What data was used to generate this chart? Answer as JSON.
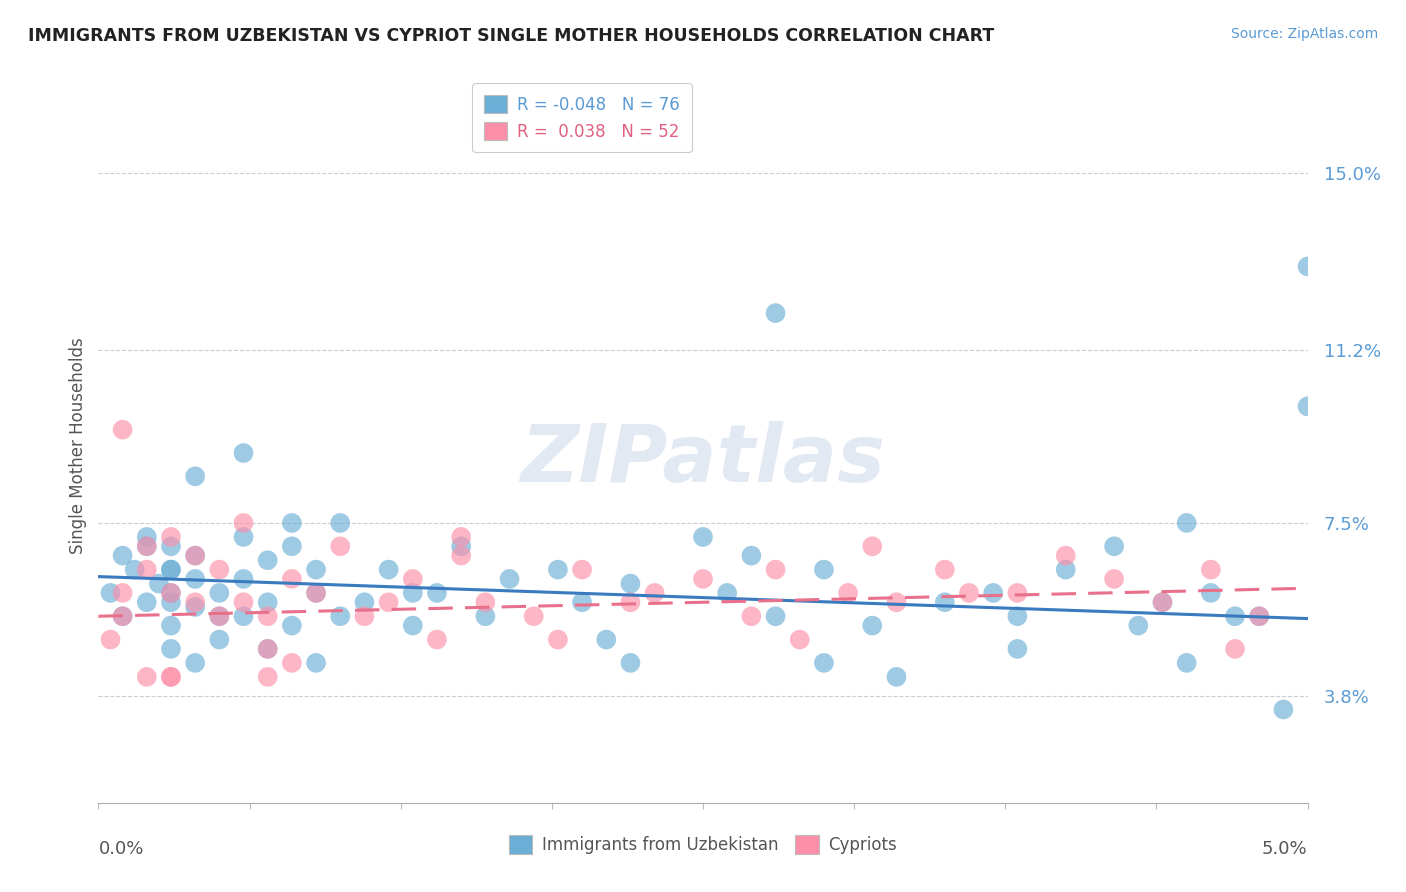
{
  "title": "IMMIGRANTS FROM UZBEKISTAN VS CYPRIOT SINGLE MOTHER HOUSEHOLDS CORRELATION CHART",
  "source": "Source: ZipAtlas.com",
  "ylabel": "Single Mother Households",
  "y_ticks": [
    0.038,
    0.075,
    0.112,
    0.15
  ],
  "y_tick_labels": [
    "3.8%",
    "7.5%",
    "11.2%",
    "15.0%"
  ],
  "x_lim": [
    0.0,
    0.05
  ],
  "y_lim": [
    0.015,
    0.168
  ],
  "legend_r1": "R = -0.048",
  "legend_n1": "N = 76",
  "legend_r2": "R =  0.038",
  "legend_n2": "N = 52",
  "color_blue": "#6baed6",
  "color_pink": "#fc8fa8",
  "trend_blue": "#3a7abf",
  "trend_pink": "#e8708a",
  "watermark": "ZIPatlas",
  "blue_scatter_x": [
    0.0005,
    0.001,
    0.001,
    0.0015,
    0.002,
    0.002,
    0.002,
    0.0025,
    0.003,
    0.003,
    0.003,
    0.003,
    0.003,
    0.003,
    0.004,
    0.004,
    0.004,
    0.004,
    0.005,
    0.005,
    0.005,
    0.006,
    0.006,
    0.006,
    0.007,
    0.007,
    0.007,
    0.008,
    0.008,
    0.009,
    0.009,
    0.01,
    0.01,
    0.011,
    0.012,
    0.013,
    0.014,
    0.015,
    0.016,
    0.017,
    0.019,
    0.02,
    0.021,
    0.022,
    0.025,
    0.026,
    0.027,
    0.028,
    0.03,
    0.032,
    0.033,
    0.035,
    0.037,
    0.038,
    0.04,
    0.042,
    0.043,
    0.044,
    0.045,
    0.046,
    0.047,
    0.048,
    0.049,
    0.05,
    0.05,
    0.045,
    0.038,
    0.03,
    0.022,
    0.013,
    0.008,
    0.004,
    0.003,
    0.006,
    0.009,
    0.028
  ],
  "blue_scatter_y": [
    0.06,
    0.055,
    0.068,
    0.065,
    0.058,
    0.072,
    0.07,
    0.062,
    0.065,
    0.058,
    0.053,
    0.07,
    0.048,
    0.06,
    0.063,
    0.057,
    0.045,
    0.068,
    0.06,
    0.05,
    0.055,
    0.072,
    0.055,
    0.063,
    0.058,
    0.048,
    0.067,
    0.053,
    0.07,
    0.06,
    0.045,
    0.075,
    0.055,
    0.058,
    0.065,
    0.053,
    0.06,
    0.07,
    0.055,
    0.063,
    0.065,
    0.058,
    0.05,
    0.045,
    0.072,
    0.06,
    0.068,
    0.055,
    0.065,
    0.053,
    0.042,
    0.058,
    0.06,
    0.048,
    0.065,
    0.07,
    0.053,
    0.058,
    0.045,
    0.06,
    0.055,
    0.055,
    0.035,
    0.1,
    0.13,
    0.075,
    0.055,
    0.045,
    0.062,
    0.06,
    0.075,
    0.085,
    0.065,
    0.09,
    0.065,
    0.12
  ],
  "pink_scatter_x": [
    0.0005,
    0.001,
    0.001,
    0.001,
    0.002,
    0.002,
    0.002,
    0.003,
    0.003,
    0.003,
    0.004,
    0.004,
    0.005,
    0.005,
    0.006,
    0.006,
    0.007,
    0.007,
    0.008,
    0.008,
    0.009,
    0.01,
    0.011,
    0.012,
    0.013,
    0.014,
    0.015,
    0.016,
    0.018,
    0.019,
    0.02,
    0.022,
    0.023,
    0.025,
    0.027,
    0.029,
    0.031,
    0.033,
    0.035,
    0.038,
    0.04,
    0.042,
    0.044,
    0.046,
    0.047,
    0.048,
    0.032,
    0.036,
    0.015,
    0.007,
    0.003,
    0.028
  ],
  "pink_scatter_y": [
    0.05,
    0.06,
    0.095,
    0.055,
    0.042,
    0.065,
    0.07,
    0.06,
    0.072,
    0.042,
    0.058,
    0.068,
    0.055,
    0.065,
    0.058,
    0.075,
    0.042,
    0.055,
    0.063,
    0.045,
    0.06,
    0.07,
    0.055,
    0.058,
    0.063,
    0.05,
    0.068,
    0.058,
    0.055,
    0.05,
    0.065,
    0.058,
    0.06,
    0.063,
    0.055,
    0.05,
    0.06,
    0.058,
    0.065,
    0.06,
    0.068,
    0.063,
    0.058,
    0.065,
    0.048,
    0.055,
    0.07,
    0.06,
    0.072,
    0.048,
    0.042,
    0.065
  ],
  "blue_trend_x": [
    0.0,
    0.05
  ],
  "blue_trend_y": [
    0.0635,
    0.0545
  ],
  "pink_trend_x": [
    0.0,
    0.05
  ],
  "pink_trend_y": [
    0.055,
    0.061
  ]
}
